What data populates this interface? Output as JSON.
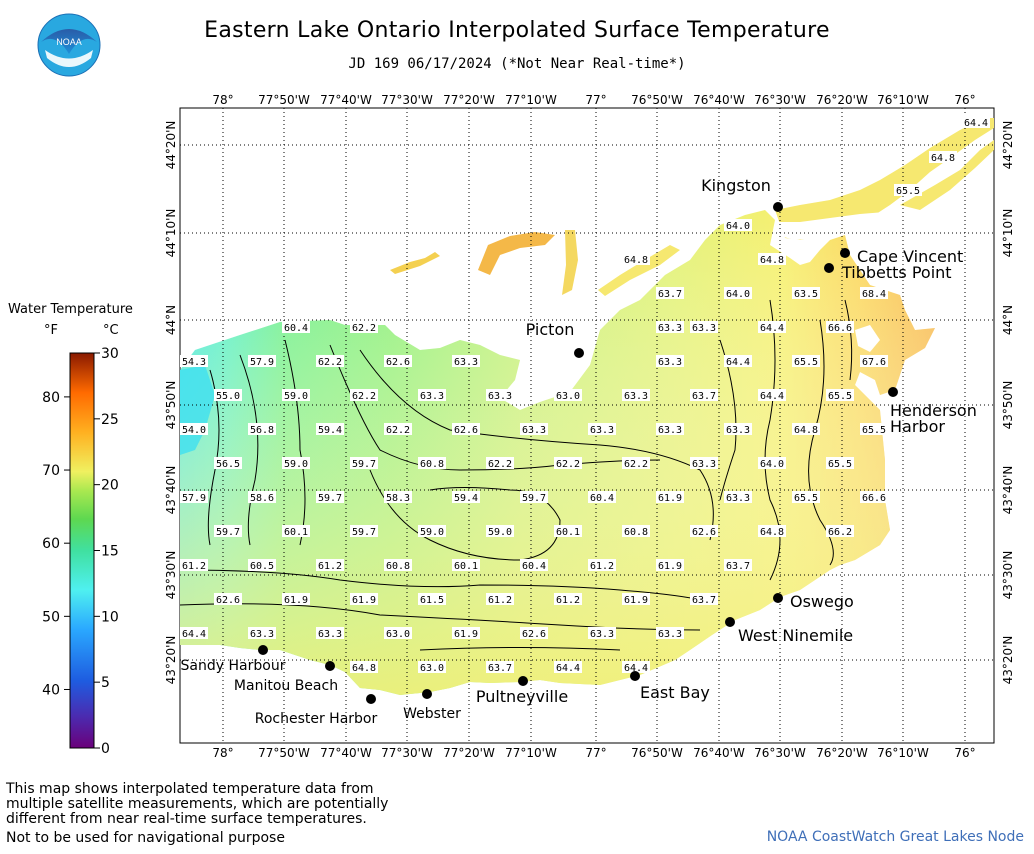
{
  "header": {
    "title": "Eastern Lake Ontario Interpolated Surface Temperature",
    "subtitle": "JD 169 06/17/2024 (*Not Near Real-time*)",
    "logo_text": "NOAA"
  },
  "legend": {
    "title": "Water Temperature",
    "unit_f": "°F",
    "unit_c": "°C",
    "f_ticks": [
      "80",
      "70",
      "60",
      "50",
      "40"
    ],
    "c_ticks": [
      "30",
      "25",
      "20",
      "15",
      "10",
      "5",
      "0"
    ]
  },
  "axes": {
    "lon_labels": [
      "78°",
      "77°50'W",
      "77°40'W",
      "77°30'W",
      "77°20'W",
      "77°10'W",
      "77°",
      "76°50'W",
      "76°40'W",
      "76°30'W",
      "76°20'W",
      "76°10'W",
      "76°"
    ],
    "lat_labels": [
      "44°20'N",
      "44°10'N",
      "44°N",
      "43°50'N",
      "43°40'N",
      "43°30'N",
      "43°20'N"
    ]
  },
  "places": [
    "Kingston",
    "Cape Vincent",
    "Tibbetts Point",
    "Picton",
    "Henderson Harbor",
    "Oswego",
    "West Ninemile",
    "East Bay",
    "Pultneyville",
    "Webster",
    "Rochester Harbor",
    "Manitou Beach",
    "Sandy Harbour"
  ],
  "temperatures": {
    "r01": [
      "64.4"
    ],
    "r02": [
      "64.8"
    ],
    "r03": [
      "65.5"
    ],
    "r04": [
      "64.0"
    ],
    "r05": [
      "64.8",
      "64.8"
    ],
    "r06": [
      "63.7",
      "64.0",
      "63.5",
      "68.4"
    ],
    "r07": [
      "60.4",
      "62.2",
      "63.3",
      "63.3",
      "64.4",
      "66.6"
    ],
    "r08": [
      "54.3",
      "57.9",
      "62.2",
      "62.6",
      "63.3",
      "63.3",
      "64.4",
      "65.5",
      "67.6"
    ],
    "r09": [
      "55.0",
      "59.0",
      "62.2",
      "63.3",
      "63.3",
      "63.0",
      "63.3",
      "63.7",
      "64.4",
      "65.5"
    ],
    "r10": [
      "54.0",
      "56.8",
      "59.4",
      "62.2",
      "62.6",
      "63.3",
      "63.3",
      "63.3",
      "63.3",
      "64.8",
      "65.5"
    ],
    "r11": [
      "56.5",
      "59.0",
      "59.7",
      "60.8",
      "62.2",
      "62.2",
      "62.2",
      "63.3",
      "64.0",
      "65.5"
    ],
    "r12": [
      "57.9",
      "58.6",
      "59.7",
      "58.3",
      "59.4",
      "59.7",
      "60.4",
      "61.9",
      "63.3",
      "65.5",
      "66.6"
    ],
    "r13": [
      "59.7",
      "60.1",
      "59.7",
      "59.0",
      "59.0",
      "60.1",
      "60.8",
      "62.6",
      "64.8",
      "66.2"
    ],
    "r14": [
      "61.2",
      "60.5",
      "61.2",
      "60.8",
      "60.1",
      "60.4",
      "61.2",
      "61.9",
      "63.7"
    ],
    "r15": [
      "62.6",
      "61.9",
      "61.9",
      "61.5",
      "61.2",
      "61.2",
      "61.9",
      "63.7"
    ],
    "r16": [
      "64.4",
      "63.3",
      "63.3",
      "63.0",
      "61.9",
      "62.6",
      "63.3",
      "63.3"
    ],
    "r17": [
      "64.8",
      "63.0",
      "63.7",
      "64.4",
      "64.4"
    ]
  },
  "footer": {
    "note_line1": "This map shows interpolated temperature data from",
    "note_line2": "multiple satellite measurements, which are potentially",
    "note_line3": "different from near real-time surface temperatures.",
    "warning": "Not to be used for navigational purpose",
    "credit": "NOAA CoastWatch Great Lakes Node"
  }
}
